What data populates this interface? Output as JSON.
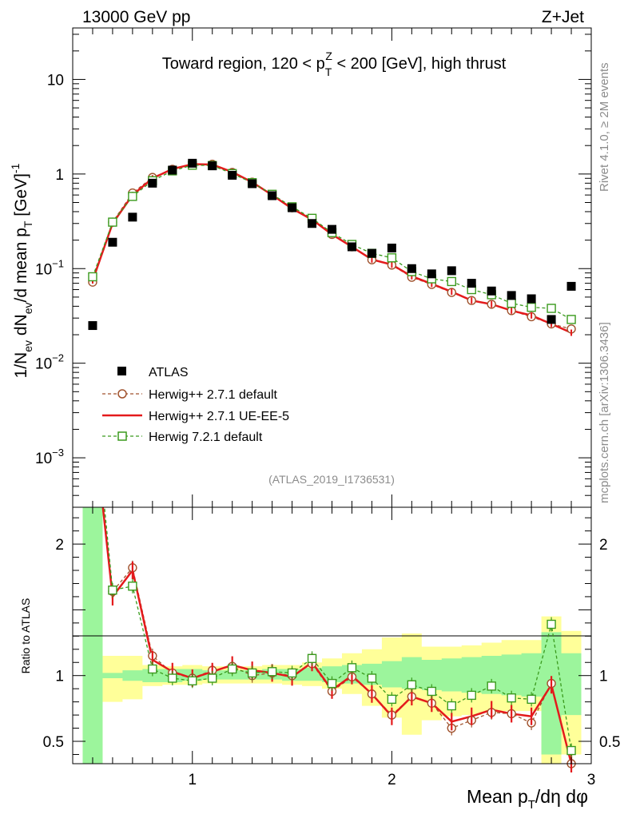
{
  "header": {
    "left": "13000 GeV pp",
    "right": "Z+Jet"
  },
  "side_text": {
    "rivet": "Rivet 4.1.0, ≥ 2M events",
    "mcplots": "mcplots.cern.ch [arXiv:1306.3436]"
  },
  "colors": {
    "data": "#000000",
    "h271_default": "#a0522d",
    "h271_ueee5": "#e41a1c",
    "h721_default": "#3a9a1d",
    "band_inner": "#9cf59c",
    "band_outer": "#ffff99"
  },
  "chart_data": {
    "type": "line",
    "title": "Toward region, 120 < p_T^Z < 200 [GeV], high thrust",
    "title_parts": {
      "pre": "Toward region, 120 < p",
      "sub": "T",
      "sup": "Z",
      "post": " < 200 [GeV], high thrust"
    },
    "analysis_id": "(ATLAS_2019_I1736531)",
    "ylabel": "1/N_ev dN_ev/d mean p_T [GeV]^-1",
    "ylabel_parts": {
      "a": "1/N",
      "a_sub": "ev",
      "b": " dN",
      "b_sub": "ev",
      "c": "/d mean p",
      "c_sub": "T",
      "d": " [GeV]",
      "d_sup": "-1"
    },
    "ratio_ylabel": "Ratio to ATLAS",
    "xlabel": "Mean p_T/dη dφ",
    "xlabel_parts": {
      "a": "Mean p",
      "a_sub": "T",
      "b": "/dη dφ"
    },
    "xlim": [
      0.4,
      3.0
    ],
    "ylim": [
      0.0003,
      35
    ],
    "yscale": "log",
    "ratio_ylim": [
      0.33,
      2.28
    ],
    "x_ticks": [
      {
        "v": 1,
        "label": "1"
      },
      {
        "v": 2,
        "label": "2"
      },
      {
        "v": 3,
        "label": "3"
      }
    ],
    "y_ticks": [
      {
        "v": 10,
        "base": "10",
        "exp": ""
      },
      {
        "v": 1,
        "base": "1",
        "exp": ""
      },
      {
        "v": 0.1,
        "base": "10",
        "exp": "−1"
      },
      {
        "v": 0.01,
        "base": "10",
        "exp": "−2"
      },
      {
        "v": 0.001,
        "base": "10",
        "exp": "−3"
      }
    ],
    "ratio_ticks": [
      {
        "v": 0.5,
        "label": "0.5"
      },
      {
        "v": 1,
        "label": "1"
      },
      {
        "v": 2,
        "label": "2"
      }
    ],
    "legend_position": "lower-left",
    "x": [
      0.5,
      0.6,
      0.7,
      0.8,
      0.9,
      1.0,
      1.1,
      1.2,
      1.3,
      1.4,
      1.5,
      1.6,
      1.7,
      1.8,
      1.9,
      2.0,
      2.1,
      2.2,
      2.3,
      2.4,
      2.5,
      2.6,
      2.7,
      2.8,
      2.9
    ],
    "data": {
      "name": "ATLAS",
      "values": [
        0.025,
        0.19,
        0.35,
        0.8,
        1.1,
        1.3,
        1.22,
        0.97,
        0.79,
        0.59,
        0.44,
        0.3,
        0.26,
        0.17,
        0.145,
        0.165,
        0.1,
        0.088,
        0.095,
        0.07,
        0.058,
        0.052,
        0.048,
        0.029,
        0.065
      ],
      "band_inner": [
        [
          0.33,
          2.28
        ],
        [
          0.98,
          1.02
        ],
        [
          0.96,
          1.04
        ],
        [
          0.95,
          1.05
        ],
        [
          0.95,
          1.05
        ],
        [
          0.96,
          1.05
        ],
        [
          0.97,
          1.04
        ],
        [
          0.97,
          1.04
        ],
        [
          0.97,
          1.04
        ],
        [
          0.97,
          1.05
        ],
        [
          0.96,
          1.05
        ],
        [
          0.96,
          1.06
        ],
        [
          0.95,
          1.07
        ],
        [
          0.94,
          1.08
        ],
        [
          0.93,
          1.09
        ],
        [
          0.91,
          1.11
        ],
        [
          0.9,
          1.14
        ],
        [
          0.89,
          1.12
        ],
        [
          0.88,
          1.13
        ],
        [
          0.87,
          1.14
        ],
        [
          0.86,
          1.15
        ],
        [
          0.85,
          1.16
        ],
        [
          0.84,
          1.17
        ],
        [
          0.4,
          1.33
        ],
        [
          0.7,
          1.17
        ]
      ],
      "band_outer": [
        [
          0.33,
          2.28
        ],
        [
          0.8,
          1.15
        ],
        [
          0.82,
          1.15
        ],
        [
          0.92,
          1.08
        ],
        [
          0.93,
          1.07
        ],
        [
          0.93,
          1.08
        ],
        [
          0.94,
          1.07
        ],
        [
          0.94,
          1.07
        ],
        [
          0.94,
          1.07
        ],
        [
          0.94,
          1.08
        ],
        [
          0.93,
          1.08
        ],
        [
          0.92,
          1.1
        ],
        [
          0.9,
          1.13
        ],
        [
          0.86,
          1.17
        ],
        [
          0.77,
          1.2
        ],
        [
          0.68,
          1.29
        ],
        [
          0.55,
          1.32
        ],
        [
          0.66,
          1.22
        ],
        [
          0.69,
          1.22
        ],
        [
          0.7,
          1.23
        ],
        [
          0.72,
          1.25
        ],
        [
          0.73,
          1.27
        ],
        [
          0.73,
          1.27
        ],
        [
          0.33,
          1.45
        ],
        [
          0.4,
          1.34
        ]
      ]
    },
    "series": [
      {
        "name": "Herwig++ 2.7.1 default",
        "key": "h271_default",
        "style": "dashed-circle",
        "values": [
          0.072,
          0.31,
          0.63,
          0.92,
          1.12,
          1.28,
          1.27,
          1.04,
          0.82,
          0.6,
          0.44,
          0.33,
          0.23,
          0.17,
          0.124,
          0.109,
          0.081,
          0.068,
          0.056,
          0.046,
          0.042,
          0.036,
          0.031,
          0.026,
          0.023
        ]
      },
      {
        "name": "Herwig++ 2.7.1 UE-EE-5",
        "key": "h271_ueee5",
        "style": "solid",
        "values": [
          0.075,
          0.3,
          0.6,
          0.9,
          1.13,
          1.27,
          1.26,
          1.05,
          0.82,
          0.6,
          0.43,
          0.33,
          0.23,
          0.17,
          0.125,
          0.11,
          0.083,
          0.069,
          0.057,
          0.046,
          0.042,
          0.036,
          0.032,
          0.026,
          0.021
        ]
      },
      {
        "name": "Herwig 7.2.1 default",
        "key": "h721_default",
        "style": "dashed-square",
        "values": [
          0.082,
          0.31,
          0.58,
          0.85,
          1.08,
          1.24,
          1.23,
          1.01,
          0.81,
          0.61,
          0.45,
          0.34,
          0.24,
          0.18,
          0.145,
          0.13,
          0.093,
          0.078,
          0.073,
          0.06,
          0.053,
          0.043,
          0.039,
          0.038,
          0.029
        ]
      }
    ],
    "ratios": {
      "h271_default": [
        2.9,
        1.64,
        1.82,
        1.15,
        1.02,
        0.98,
        1.04,
        1.07,
        1.0,
        1.02,
        1.0,
        1.09,
        0.88,
        0.99,
        0.86,
        0.7,
        0.84,
        0.79,
        0.6,
        0.66,
        0.72,
        0.71,
        0.64,
        0.94,
        0.33
      ],
      "h271_ueee5": [
        3.0,
        1.6,
        1.8,
        1.12,
        1.03,
        0.98,
        1.03,
        1.08,
        1.04,
        1.02,
        0.99,
        1.1,
        0.89,
        1.0,
        0.86,
        0.69,
        0.84,
        0.79,
        0.65,
        0.69,
        0.74,
        0.71,
        0.69,
        0.93,
        0.33
      ],
      "h721_default": [
        3.2,
        1.65,
        1.68,
        1.05,
        0.98,
        0.96,
        0.98,
        1.05,
        1.02,
        1.03,
        1.02,
        1.13,
        0.94,
        1.06,
        0.98,
        0.82,
        0.93,
        0.88,
        0.77,
        0.85,
        0.92,
        0.83,
        0.82,
        1.39,
        0.43
      ]
    }
  }
}
